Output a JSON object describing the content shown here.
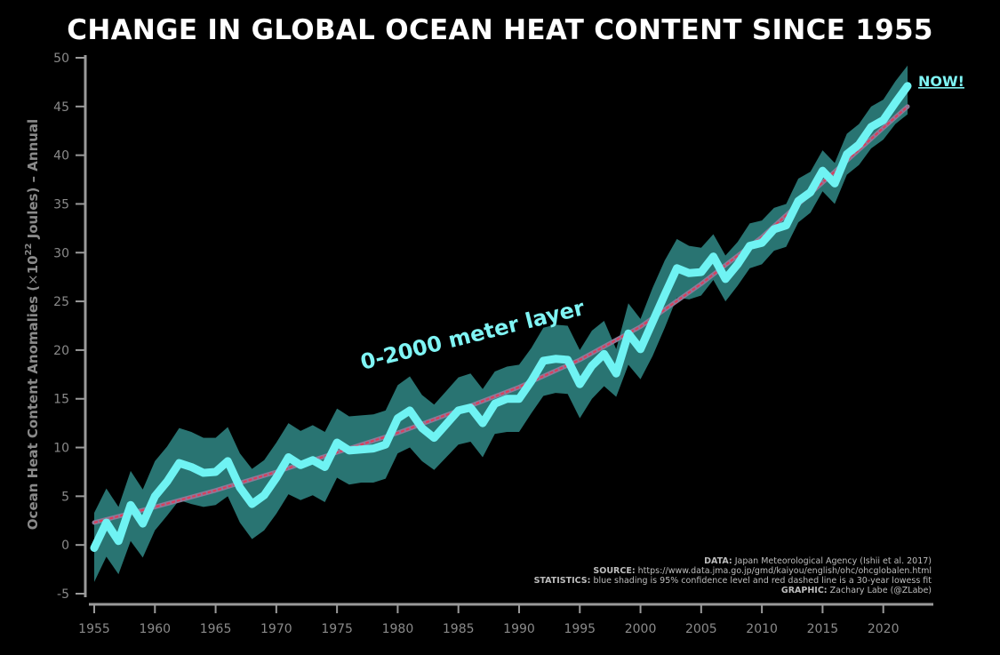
{
  "chart_data": {
    "type": "line",
    "title": "CHANGE IN GLOBAL OCEAN HEAT CONTENT SINCE 1955",
    "ylabel": "Ocean Heat Content Anomalies (×10²² Joules) – Annual",
    "ylabel_parts": {
      "pre": "Ocean Heat Content Anomalies (",
      "times": "×",
      "base": "10",
      "sup": "22",
      "post": " Joules) – Annual"
    },
    "xlim": [
      1955,
      2022
    ],
    "ylim": [
      -5,
      50
    ],
    "xticks": [
      1955,
      1960,
      1965,
      1970,
      1975,
      1980,
      1985,
      1990,
      1995,
      2000,
      2005,
      2010,
      2015,
      2020
    ],
    "yticks": [
      -5,
      0,
      5,
      10,
      15,
      20,
      25,
      30,
      35,
      40,
      45,
      50
    ],
    "grid": false,
    "x": [
      1955,
      1956,
      1957,
      1958,
      1959,
      1960,
      1961,
      1962,
      1963,
      1964,
      1965,
      1966,
      1967,
      1968,
      1969,
      1970,
      1971,
      1972,
      1973,
      1974,
      1975,
      1976,
      1977,
      1978,
      1979,
      1980,
      1981,
      1982,
      1983,
      1984,
      1985,
      1986,
      1987,
      1988,
      1989,
      1990,
      1991,
      1992,
      1993,
      1994,
      1995,
      1996,
      1997,
      1998,
      1999,
      2000,
      2001,
      2002,
      2003,
      2004,
      2005,
      2006,
      2007,
      2008,
      2009,
      2010,
      2011,
      2012,
      2013,
      2014,
      2015,
      2016,
      2017,
      2018,
      2019,
      2020,
      2021,
      2022
    ],
    "series": [
      {
        "values": [
          -0.3,
          2.3,
          0.4,
          4.1,
          2.2,
          5.0,
          6.5,
          8.4,
          8.0,
          7.4,
          7.5,
          8.6,
          5.9,
          4.2,
          5.1,
          6.9,
          9.0,
          8.2,
          8.7,
          8.0,
          10.5,
          9.7,
          9.8,
          9.9,
          10.3,
          13.0,
          13.8,
          12.0,
          11.0,
          12.4,
          13.8,
          14.1,
          12.5,
          14.5,
          15.0,
          15.0,
          16.8,
          18.9,
          19.1,
          19.0,
          16.5,
          18.4,
          19.6,
          17.6,
          21.7,
          20.1,
          22.9,
          25.7,
          28.4,
          27.9,
          28.0,
          29.6,
          27.3,
          28.8,
          30.7,
          31.0,
          32.4,
          32.8,
          35.3,
          36.2,
          38.4,
          37.1,
          40.1,
          41.1,
          42.9,
          43.6,
          45.4,
          47.1
        ],
        "lower": [
          -3.8,
          -1.2,
          -3.0,
          0.4,
          -1.3,
          1.5,
          3.0,
          4.6,
          4.2,
          3.9,
          4.1,
          5.0,
          2.3,
          0.6,
          1.5,
          3.2,
          5.2,
          4.6,
          5.1,
          4.4,
          6.9,
          6.2,
          6.4,
          6.4,
          6.8,
          9.4,
          10.0,
          8.6,
          7.7,
          9.0,
          10.3,
          10.6,
          9.0,
          11.4,
          11.6,
          11.6,
          13.5,
          15.3,
          15.6,
          15.5,
          13.0,
          15.0,
          16.3,
          15.2,
          18.5,
          17.0,
          19.4,
          22.3,
          25.4,
          25.2,
          25.6,
          27.2,
          25.0,
          26.6,
          28.4,
          28.8,
          30.2,
          30.6,
          33.1,
          34.1,
          36.3,
          35.0,
          38.0,
          39.0,
          40.7,
          41.6,
          43.2,
          44.2
        ],
        "upper": [
          3.3,
          5.8,
          3.9,
          7.6,
          5.7,
          8.6,
          10.1,
          12.0,
          11.6,
          11.0,
          11.0,
          12.1,
          9.4,
          7.8,
          8.7,
          10.5,
          12.5,
          11.7,
          12.3,
          11.6,
          14.0,
          13.2,
          13.3,
          13.4,
          13.8,
          16.4,
          17.3,
          15.4,
          14.4,
          15.8,
          17.2,
          17.6,
          16.0,
          17.8,
          18.3,
          18.5,
          20.2,
          22.3,
          22.6,
          22.5,
          20.0,
          22.0,
          23.0,
          20.1,
          24.8,
          23.2,
          26.4,
          29.2,
          31.4,
          30.7,
          30.5,
          31.9,
          29.7,
          31.1,
          33.0,
          33.3,
          34.6,
          35.0,
          37.6,
          38.3,
          40.5,
          39.2,
          42.2,
          43.2,
          45.0,
          45.7,
          47.6,
          49.2
        ]
      }
    ],
    "trend": {
      "x": [
        1955,
        1960,
        1965,
        1970,
        1975,
        1980,
        1985,
        1990,
        1995,
        2000,
        2005,
        2010,
        2015,
        2020,
        2022
      ],
      "values": [
        2.3,
        3.9,
        5.6,
        7.5,
        9.5,
        11.5,
        13.8,
        16.2,
        19.0,
        22.4,
        26.8,
        31.6,
        37.2,
        42.8,
        45.0
      ]
    },
    "annotations": {
      "layer_label": "0-2000 meter layer",
      "now_label": "NOW!"
    },
    "credits": [
      {
        "key": "DATA:",
        "text": " Japan Meteorological Agency (Ishii et al. 2017)"
      },
      {
        "key": "SOURCE:",
        "text": " https://www.data.jma.go.jp/gmd/kaiyou/english/ohc/ohcglobalen.html"
      },
      {
        "key": "STATISTICS:",
        "text": " blue shading is 95% confidence level and red dashed line is a 30-year lowess fit"
      },
      {
        "key": "GRAPHIC:",
        "text": " Zachary Labe (@ZLabe)"
      }
    ],
    "colors": {
      "background": "#000000",
      "line": "#6ff3f3",
      "band": "#2b7a78",
      "trend_outer": "#8c7a98",
      "trend_inner": "#e03a5a",
      "axis": "#9a9a9a",
      "text": "#8a8a8a"
    }
  }
}
